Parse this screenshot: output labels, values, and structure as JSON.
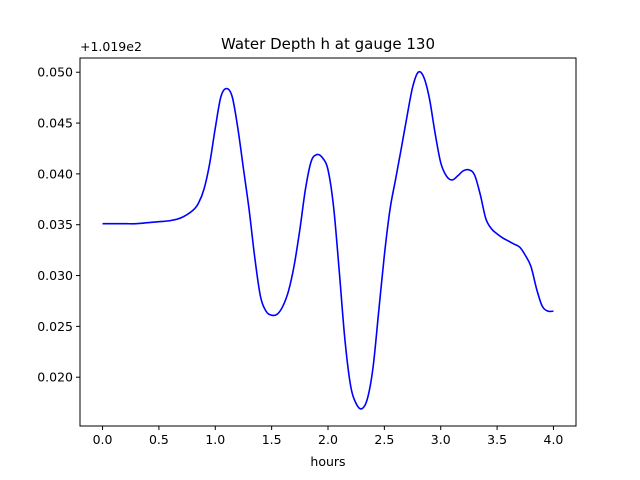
{
  "chart_data": {
    "type": "line",
    "title": "Water Depth h at gauge 130",
    "xlabel": "hours",
    "ylabel": "",
    "y_offset_label": "+1.019e2",
    "xlim": [
      -0.2,
      4.2
    ],
    "ylim": [
      0.0152,
      0.0514
    ],
    "x_ticks": [
      0.0,
      0.5,
      1.0,
      1.5,
      2.0,
      2.5,
      3.0,
      3.5,
      4.0
    ],
    "x_tick_labels": [
      "0.0",
      "0.5",
      "1.0",
      "1.5",
      "2.0",
      "2.5",
      "3.0",
      "3.5",
      "4.0"
    ],
    "y_ticks": [
      0.02,
      0.025,
      0.03,
      0.035,
      0.04,
      0.045,
      0.05
    ],
    "y_tick_labels": [
      "0.020",
      "0.025",
      "0.030",
      "0.035",
      "0.040",
      "0.045",
      "0.050"
    ],
    "grid": false,
    "series": [
      {
        "color": "#0000ff",
        "x": [
          0.0,
          0.1,
          0.2,
          0.3,
          0.4,
          0.5,
          0.6,
          0.7,
          0.8,
          0.85,
          0.9,
          0.95,
          1.0,
          1.05,
          1.1,
          1.15,
          1.2,
          1.25,
          1.3,
          1.35,
          1.4,
          1.45,
          1.5,
          1.55,
          1.6,
          1.65,
          1.7,
          1.75,
          1.8,
          1.85,
          1.9,
          1.95,
          2.0,
          2.05,
          2.1,
          2.15,
          2.2,
          2.25,
          2.3,
          2.35,
          2.4,
          2.45,
          2.5,
          2.55,
          2.6,
          2.65,
          2.7,
          2.75,
          2.8,
          2.85,
          2.9,
          2.95,
          3.0,
          3.05,
          3.1,
          3.15,
          3.2,
          3.25,
          3.3,
          3.35,
          3.4,
          3.45,
          3.5,
          3.55,
          3.6,
          3.65,
          3.7,
          3.75,
          3.8,
          3.85,
          3.9,
          3.95,
          4.0
        ],
        "values": [
          0.0351,
          0.0351,
          0.0351,
          0.0351,
          0.0352,
          0.0353,
          0.0354,
          0.0357,
          0.0364,
          0.0371,
          0.0385,
          0.041,
          0.0445,
          0.0476,
          0.0484,
          0.0476,
          0.0445,
          0.0405,
          0.0365,
          0.0318,
          0.028,
          0.0265,
          0.0261,
          0.0262,
          0.027,
          0.0285,
          0.031,
          0.0345,
          0.0385,
          0.0412,
          0.0419,
          0.0416,
          0.0404,
          0.0367,
          0.0304,
          0.0237,
          0.0192,
          0.0174,
          0.0169,
          0.0179,
          0.021,
          0.0265,
          0.032,
          0.0365,
          0.0395,
          0.0425,
          0.0456,
          0.0485,
          0.05,
          0.0495,
          0.0474,
          0.044,
          0.0411,
          0.0398,
          0.0394,
          0.0398,
          0.0403,
          0.0404,
          0.0399,
          0.038,
          0.0356,
          0.0346,
          0.0341,
          0.0337,
          0.0334,
          0.0331,
          0.0328,
          0.032,
          0.0309,
          0.0287,
          0.027,
          0.0265,
          0.0265
        ]
      }
    ]
  }
}
